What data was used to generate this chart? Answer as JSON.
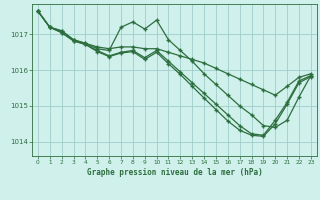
{
  "title": "Graphe pression niveau de la mer (hPa)",
  "background_color": "#cff0eb",
  "grid_color": "#9ececa",
  "line_color": "#2d6e3e",
  "xlim": [
    -0.5,
    23.5
  ],
  "ylim": [
    1013.6,
    1017.85
  ],
  "yticks": [
    1014,
    1015,
    1016,
    1017
  ],
  "xticks": [
    0,
    1,
    2,
    3,
    4,
    5,
    6,
    7,
    8,
    9,
    10,
    11,
    12,
    13,
    14,
    15,
    16,
    17,
    18,
    19,
    20,
    21,
    22,
    23
  ],
  "line1_x": [
    0,
    1,
    2,
    3,
    4,
    5,
    6,
    7,
    8,
    9,
    10,
    11,
    12,
    13,
    14,
    15,
    16,
    17,
    18,
    19,
    20,
    21,
    22,
    23
  ],
  "line1_y": [
    1017.65,
    1017.2,
    1017.1,
    1016.85,
    1016.75,
    1016.65,
    1016.6,
    1016.65,
    1016.65,
    1016.6,
    1016.6,
    1016.5,
    1016.4,
    1016.3,
    1016.2,
    1016.05,
    1015.9,
    1015.75,
    1015.6,
    1015.45,
    1015.3,
    1015.55,
    1015.8,
    1015.9
  ],
  "line2_x": [
    0,
    1,
    2,
    3,
    4,
    5,
    6,
    7,
    8,
    9,
    10,
    11,
    12,
    13,
    14,
    15,
    16,
    17,
    18,
    19,
    20,
    21,
    22,
    23
  ],
  "line2_y": [
    1017.65,
    1017.2,
    1017.1,
    1016.85,
    1016.75,
    1016.6,
    1016.55,
    1017.2,
    1017.35,
    1017.15,
    1017.4,
    1016.85,
    1016.55,
    1016.25,
    1015.9,
    1015.6,
    1015.3,
    1015.0,
    1014.75,
    1014.45,
    1014.4,
    1014.6,
    1015.25,
    1015.85
  ],
  "line3_x": [
    0,
    1,
    2,
    3,
    4,
    5,
    6,
    7,
    8,
    9,
    10,
    11,
    12,
    13,
    14,
    15,
    16,
    17,
    18,
    19,
    20,
    21,
    22,
    23
  ],
  "line3_y": [
    1017.65,
    1017.2,
    1017.05,
    1016.82,
    1016.72,
    1016.55,
    1016.4,
    1016.5,
    1016.55,
    1016.35,
    1016.55,
    1016.25,
    1015.95,
    1015.65,
    1015.35,
    1015.05,
    1014.75,
    1014.45,
    1014.22,
    1014.18,
    1014.6,
    1015.1,
    1015.7,
    1015.85
  ],
  "line4_x": [
    0,
    1,
    2,
    3,
    4,
    5,
    6,
    7,
    8,
    9,
    10,
    11,
    12,
    13,
    14,
    15,
    16,
    17,
    18,
    19,
    20,
    21,
    22,
    23
  ],
  "line4_y": [
    1017.65,
    1017.2,
    1017.05,
    1016.82,
    1016.72,
    1016.52,
    1016.38,
    1016.48,
    1016.52,
    1016.3,
    1016.5,
    1016.18,
    1015.88,
    1015.55,
    1015.22,
    1014.9,
    1014.58,
    1014.32,
    1014.18,
    1014.15,
    1014.5,
    1015.05,
    1015.65,
    1015.82
  ]
}
